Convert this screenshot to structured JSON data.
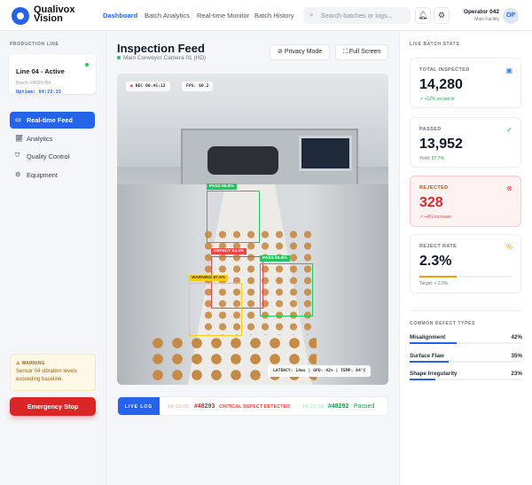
{
  "header": {
    "brand_line1": "Qualivox",
    "brand_line2": "Vision",
    "nav": [
      "Dashboard",
      "Batch Analytics",
      "Real-time Monitor",
      "Batch History"
    ],
    "active_nav": "Dashboard",
    "search_placeholder": "Search batches or logs...",
    "operator": "Operator 042",
    "facility": "Main Facility",
    "avatar": "OP"
  },
  "sidebar": {
    "section": "PRODUCTION LINE",
    "line_title": "Line 04 - Active",
    "batch": "Batch #4829-BK",
    "uptime": "Uptime: 04:22:15",
    "items": [
      {
        "label": "Real-time Feed",
        "icon": "video-icon",
        "active": true
      },
      {
        "label": "Analytics",
        "icon": "chart-icon"
      },
      {
        "label": "Quality Control",
        "icon": "shield-icon"
      },
      {
        "label": "Equipment",
        "icon": "gear-icon"
      }
    ],
    "warning_title": "WARNING",
    "warning_text": "Sensor 04 vibration levels exceeding baseline.",
    "emergency": "Emergency Stop"
  },
  "main": {
    "title": "Inspection Feed",
    "camera": "Main Conveyor Camera 01 (HD)",
    "privacy": "Privacy Mode",
    "fullscreen": "Full Screen",
    "rec": "REC 00:45:12",
    "fps": "FPS: 60.2",
    "telemetry": "LATENCY: 14ms | GPU: 42% | TEMP: 64°C",
    "detections": [
      {
        "label": "PASS 99.8%",
        "color": "#22c55e"
      },
      {
        "label": "DEFECT 94.2%",
        "color": "#ef4444"
      },
      {
        "label": "PASS 99.9%",
        "color": "#22c55e"
      },
      {
        "label": "WARNING 87.5%",
        "color": "#facc15"
      }
    ],
    "log": {
      "tag": "LIVE LOG",
      "entries": [
        {
          "time": "14:22:01",
          "id": "#48293",
          "msg": "CRITICAL DEFECT DETECTED",
          "color": "#ef4444"
        },
        {
          "time": "14:21:58",
          "id": "#48292",
          "msg": "Passed",
          "color": "#22c55e"
        }
      ]
    }
  },
  "stats": {
    "section": "LIVE BATCH STATS",
    "total": {
      "label": "TOTAL INSPECTED",
      "value": "14,280",
      "foot": "↗ +12% vs last hr"
    },
    "passed": {
      "label": "PASSED",
      "value": "13,952",
      "foot_label": "Yield:",
      "foot_value": "97.7%"
    },
    "rejected": {
      "label": "REJECTED",
      "value": "328",
      "foot": "↗ +4% increase"
    },
    "rate": {
      "label": "REJECT RATE",
      "value": "2.3%",
      "fill": 0.4,
      "foot": "Target: < 2.0%"
    },
    "defects_title": "COMMON DEFECT TYPES",
    "defects": [
      {
        "name": "Misalignment",
        "pct": "42%",
        "value": 42
      },
      {
        "name": "Surface Flaw",
        "pct": "35%",
        "value": 35
      },
      {
        "name": "Shape Irregularity",
        "pct": "23%",
        "value": 23
      }
    ]
  }
}
